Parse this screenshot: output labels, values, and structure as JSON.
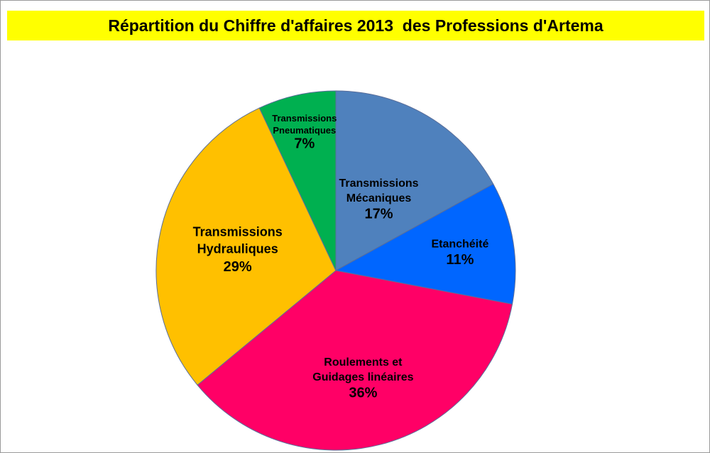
{
  "title": "Répartition du Chiffre d'affaires 2013  des Professions d'Artema",
  "colors": {
    "title_background": "#ffff00",
    "slice_border": "#5a6e9a"
  },
  "chart_data": {
    "type": "pie",
    "title": "Répartition du Chiffre d'affaires 2013  des Professions d'Artema",
    "start": "12 o'clock",
    "direction": "clockwise",
    "legend": "none",
    "slices": [
      {
        "label_lines": [
          "Transmissions",
          "Mécaniques"
        ],
        "value": 17,
        "value_label": "17%",
        "color": "#4f81bd"
      },
      {
        "label_lines": [
          "Etanchéité"
        ],
        "value": 11,
        "value_label": "11%",
        "color": "#0066ff"
      },
      {
        "label_lines": [
          "Roulements et",
          "Guidages linéaires"
        ],
        "value": 36,
        "value_label": "36%",
        "color": "#ff0066"
      },
      {
        "label_lines": [
          "Transmissions",
          "Hydrauliques"
        ],
        "value": 29,
        "value_label": "29%",
        "color": "#ffc000"
      },
      {
        "label_lines": [
          "Transmissions",
          "Pneumatiques"
        ],
        "value": 7,
        "value_label": "7%",
        "color": "#00b050"
      }
    ]
  }
}
